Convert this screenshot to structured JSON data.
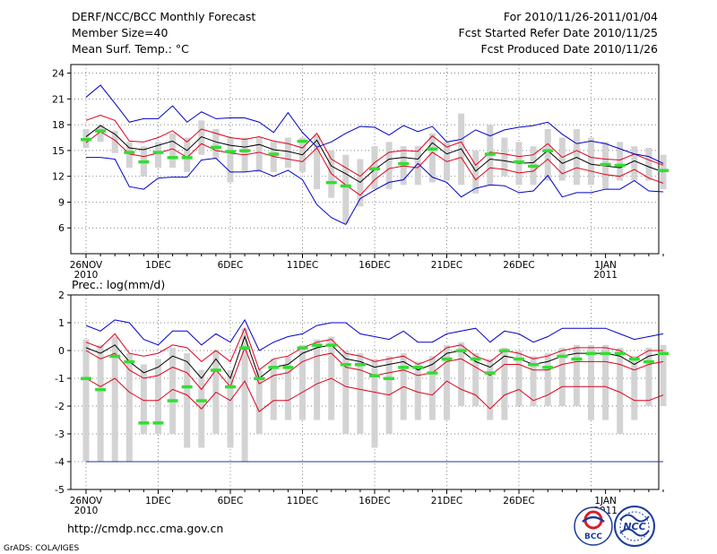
{
  "header": {
    "title": "DERF/NCC/BCC Monthly Forecast",
    "member_size": "Member Size=40",
    "variable": "Mean Surf. Temp.: °C",
    "period": "For 2010/11/26-2011/01/04",
    "started": "Fcst Started Refer Date 2010/11/25",
    "produced": "Fcst Produced Date 2010/11/26"
  },
  "footer": {
    "url": "http://cmdp.ncc.cma.gov.cn",
    "credit": "GrADS: COLA/IGES",
    "logo_bcc_text": "BCC",
    "logo_ncc_text": "NCC"
  },
  "colors": {
    "box": "#d3d3d3",
    "mean": "#000000",
    "inner_band": "#e0001c",
    "outer_band": "#0000cc",
    "marker": "#33dd33",
    "grid": "#555555",
    "baseline": "#2233aa"
  },
  "chart_data": [
    {
      "id": "temperature",
      "type": "line",
      "ylabel": "Mean Surf. Temp.: °C",
      "ylim": [
        3,
        25
      ],
      "yticks": [
        6,
        9,
        12,
        15,
        18,
        21,
        24
      ],
      "days": 40,
      "xticks": [
        {
          "day": 0,
          "label": "26NOV",
          "sub": "2010"
        },
        {
          "day": 5,
          "label": "1DEC",
          "sub": ""
        },
        {
          "day": 10,
          "label": "6DEC",
          "sub": ""
        },
        {
          "day": 15,
          "label": "11DEC",
          "sub": ""
        },
        {
          "day": 20,
          "label": "16DEC",
          "sub": ""
        },
        {
          "day": 25,
          "label": "21DEC",
          "sub": ""
        },
        {
          "day": 30,
          "label": "26DEC",
          "sub": ""
        },
        {
          "day": 36,
          "label": "1JAN",
          "sub": "2011"
        }
      ],
      "series": [
        {
          "name": "mean",
          "values": [
            16.6,
            17.9,
            16.9,
            15.3,
            15.1,
            15.6,
            16.1,
            15.0,
            16.6,
            16.0,
            15.6,
            15.4,
            15.7,
            15.1,
            14.9,
            14.5,
            16.2,
            13.2,
            12.3,
            11.3,
            12.8,
            14.0,
            14.2,
            14.0,
            15.9,
            14.6,
            15.2,
            12.6,
            14.0,
            13.8,
            13.5,
            13.6,
            15.0,
            13.5,
            14.2,
            13.4,
            13.2,
            13.0,
            13.8,
            13.1,
            12.5
          ]
        },
        {
          "name": "upper_inner",
          "values": [
            18.5,
            19.1,
            18.5,
            16.1,
            16.0,
            16.5,
            17.3,
            16.0,
            17.5,
            17.0,
            16.5,
            16.3,
            16.6,
            16.1,
            15.8,
            15.3,
            17.0,
            14.0,
            13.0,
            12.0,
            13.6,
            14.8,
            15.0,
            14.9,
            16.7,
            15.4,
            16.0,
            13.3,
            14.8,
            14.6,
            14.3,
            14.5,
            15.8,
            14.2,
            15.0,
            14.2,
            14.0,
            13.9,
            14.6,
            13.9,
            13.3
          ]
        },
        {
          "name": "lower_inner",
          "values": [
            15.9,
            17.2,
            16.2,
            14.6,
            14.3,
            14.7,
            15.2,
            14.2,
            15.8,
            15.0,
            14.7,
            14.5,
            14.8,
            14.3,
            14.0,
            13.7,
            15.3,
            12.3,
            11.0,
            9.8,
            11.6,
            12.9,
            13.2,
            13.0,
            14.8,
            13.7,
            14.2,
            11.6,
            13.0,
            12.8,
            12.4,
            12.6,
            14.0,
            12.3,
            13.0,
            12.6,
            12.2,
            12.0,
            12.8,
            11.8,
            11.2
          ]
        },
        {
          "name": "upper_outer",
          "values": [
            21.2,
            22.6,
            20.5,
            18.3,
            18.7,
            18.7,
            20.2,
            18.3,
            19.5,
            18.7,
            18.8,
            18.8,
            18.3,
            17.1,
            19.4,
            17.1,
            15.4,
            16.0,
            17.0,
            17.8,
            17.7,
            16.8,
            17.9,
            17.2,
            17.8,
            16.0,
            16.3,
            17.4,
            16.7,
            17.4,
            17.7,
            17.9,
            18.3,
            16.9,
            15.8,
            16.1,
            15.8,
            15.2,
            14.6,
            14.3,
            13.5
          ]
        },
        {
          "name": "lower_outer",
          "values": [
            14.2,
            14.2,
            14.0,
            10.8,
            10.5,
            11.8,
            11.9,
            11.9,
            13.9,
            14.1,
            12.5,
            12.5,
            12.7,
            12.0,
            12.7,
            11.6,
            8.7,
            7.2,
            6.4,
            9.4,
            10.4,
            11.3,
            11.6,
            13.5,
            11.9,
            11.3,
            9.6,
            10.6,
            11.0,
            10.9,
            10.1,
            10.3,
            12.1,
            9.6,
            10.1,
            10.1,
            10.5,
            10.5,
            11.5,
            10.3,
            10.2
          ]
        },
        {
          "name": "observed_markers",
          "values": [
            16.3,
            17.3,
            null,
            14.8,
            13.7,
            14.8,
            14.2,
            14.2,
            null,
            15.4,
            14.9,
            15.0,
            null,
            14.6,
            null,
            16.1,
            null,
            11.3,
            10.9,
            null,
            12.9,
            null,
            13.5,
            null,
            15.2,
            null,
            null,
            null,
            14.6,
            null,
            13.7,
            13.2,
            15.0,
            null,
            null,
            null,
            13.4,
            13.3,
            null,
            null,
            12.7
          ]
        }
      ],
      "boxes": {
        "low": [
          15.3,
          16.0,
          14.7,
          13.0,
          12.0,
          13.0,
          13.0,
          12.5,
          14.5,
          14.0,
          11.3,
          12.5,
          12.5,
          12.5,
          13.0,
          12.5,
          10.5,
          9.5,
          6.5,
          8.5,
          10.5,
          10.5,
          11.0,
          11.0,
          11.3,
          11.5,
          11.0,
          10.0,
          11.0,
          12.0,
          11.0,
          11.0,
          11.5,
          11.5,
          11.0,
          11.0,
          10.5,
          11.5,
          11.5,
          11.5,
          10.5
        ],
        "high": [
          17.5,
          18.0,
          17.3,
          16.0,
          15.5,
          16.0,
          17.0,
          16.5,
          18.5,
          17.5,
          16.5,
          16.5,
          16.5,
          16.0,
          16.5,
          16.5,
          16.8,
          15.0,
          14.5,
          14.0,
          15.5,
          16.0,
          15.5,
          15.5,
          17.0,
          16.0,
          19.3,
          15.0,
          18.0,
          16.5,
          16.0,
          15.5,
          17.5,
          16.5,
          17.5,
          16.5,
          16.0,
          16.0,
          15.5,
          15.3,
          14.5
        ]
      }
    },
    {
      "id": "precipitation",
      "type": "line",
      "ylabel": "Prec.: log(mm/d)",
      "ylim": [
        -5,
        2
      ],
      "yticks": [
        -5,
        -4,
        -3,
        -2,
        -1,
        0,
        1,
        2
      ],
      "days": 40,
      "xticks": [
        {
          "day": 0,
          "label": "26NOV",
          "sub": "2010"
        },
        {
          "day": 5,
          "label": "1DEC",
          "sub": ""
        },
        {
          "day": 10,
          "label": "6DEC",
          "sub": ""
        },
        {
          "day": 15,
          "label": "11DEC",
          "sub": ""
        },
        {
          "day": 20,
          "label": "16DEC",
          "sub": ""
        },
        {
          "day": 25,
          "label": "21DEC",
          "sub": ""
        },
        {
          "day": 30,
          "label": "26DEC",
          "sub": ""
        },
        {
          "day": 36,
          "label": "1JAN",
          "sub": "2011"
        }
      ],
      "series": [
        {
          "name": "mean",
          "values": [
            0.1,
            -0.1,
            0.2,
            -0.4,
            -0.8,
            -0.6,
            -0.2,
            -0.4,
            -1.0,
            -0.3,
            -1.0,
            0.5,
            -1.0,
            -0.6,
            -0.5,
            -0.1,
            0.1,
            0.2,
            -0.3,
            -0.4,
            -0.6,
            -0.5,
            -0.4,
            -0.7,
            -0.5,
            -0.1,
            0.0,
            -0.4,
            -0.6,
            -0.2,
            -0.3,
            -0.5,
            -0.4,
            -0.2,
            -0.1,
            -0.1,
            -0.1,
            -0.2,
            -0.5,
            -0.2,
            -0.1
          ]
        },
        {
          "name": "upper_inner",
          "values": [
            0.3,
            0.1,
            0.6,
            -0.1,
            -0.2,
            -0.1,
            0.2,
            0.1,
            -0.4,
            0.0,
            -0.4,
            0.8,
            -0.7,
            -0.3,
            -0.2,
            0.1,
            0.3,
            0.4,
            -0.1,
            -0.2,
            -0.4,
            -0.3,
            -0.2,
            -0.5,
            -0.3,
            0.1,
            0.2,
            -0.2,
            -0.4,
            0.0,
            -0.1,
            -0.3,
            -0.2,
            0.0,
            0.1,
            0.1,
            0.1,
            0.0,
            -0.3,
            0.0,
            0.0
          ]
        },
        {
          "name": "lower_inner",
          "values": [
            0.0,
            -0.3,
            -0.1,
            -0.7,
            -1.0,
            -0.9,
            -0.6,
            -0.8,
            -1.4,
            -0.7,
            -1.3,
            0.1,
            -1.2,
            -0.9,
            -0.8,
            -0.4,
            -0.2,
            -0.1,
            -0.6,
            -0.7,
            -0.9,
            -0.8,
            -0.7,
            -0.9,
            -0.8,
            -0.4,
            -0.3,
            -0.6,
            -0.9,
            -0.5,
            -0.5,
            -0.7,
            -0.7,
            -0.5,
            -0.4,
            -0.4,
            -0.4,
            -0.5,
            -0.7,
            -0.5,
            -0.4
          ]
        },
        {
          "name": "lower_inner2",
          "values": [
            -1.0,
            -1.3,
            -1.0,
            -1.5,
            -1.8,
            -1.8,
            -1.4,
            -1.6,
            -2.1,
            -1.5,
            -1.8,
            -1.1,
            -2.2,
            -1.8,
            -1.8,
            -1.5,
            -1.2,
            -1.0,
            -1.3,
            -1.4,
            -1.5,
            -1.6,
            -1.3,
            -1.5,
            -1.6,
            -1.1,
            -1.4,
            -1.6,
            -2.1,
            -1.6,
            -1.4,
            -1.8,
            -1.6,
            -1.3,
            -1.3,
            -1.3,
            -1.3,
            -1.5,
            -1.8,
            -1.8,
            -1.6
          ]
        },
        {
          "name": "upper_outer",
          "values": [
            0.9,
            0.7,
            1.1,
            1.0,
            0.4,
            0.2,
            0.7,
            0.7,
            0.2,
            0.6,
            0.3,
            1.1,
            0.0,
            0.3,
            0.5,
            0.6,
            0.9,
            1.0,
            1.0,
            0.6,
            0.5,
            0.4,
            0.7,
            0.3,
            0.3,
            0.6,
            0.7,
            0.8,
            0.3,
            0.7,
            0.6,
            0.3,
            0.5,
            0.8,
            0.8,
            0.8,
            0.8,
            0.6,
            0.4,
            0.5,
            0.6
          ]
        },
        {
          "name": "observed_markers",
          "values": [
            -1.0,
            -1.4,
            -0.2,
            -0.4,
            -2.6,
            -2.6,
            -1.8,
            -1.3,
            -1.8,
            -0.7,
            -1.3,
            0.1,
            -1.0,
            -0.6,
            -0.6,
            0.1,
            0.2,
            0.2,
            -0.5,
            -0.5,
            -0.9,
            -1.0,
            -0.6,
            -0.6,
            -0.8,
            -0.3,
            0.0,
            -0.3,
            -0.8,
            0.0,
            -0.3,
            -0.5,
            -0.6,
            -0.2,
            -0.3,
            -0.1,
            -0.1,
            -0.1,
            -0.3,
            -0.4,
            -0.1
          ]
        }
      ],
      "boxes": {
        "low": [
          -4.0,
          -4.0,
          -4.0,
          -4.0,
          -3.0,
          -3.0,
          -3.0,
          -3.5,
          -3.5,
          -3.0,
          -3.5,
          -4.0,
          -3.0,
          -2.5,
          -2.5,
          -2.5,
          -2.5,
          -2.5,
          -3.0,
          -3.0,
          -3.5,
          -3.0,
          -2.5,
          -2.5,
          -2.5,
          -2.5,
          -2.0,
          -2.0,
          -2.5,
          -2.5,
          -2.0,
          -2.0,
          -2.0,
          -2.0,
          -2.0,
          -2.5,
          -2.5,
          -3.0,
          -2.5,
          -2.0,
          -2.0
        ]
      }
    }
  ]
}
